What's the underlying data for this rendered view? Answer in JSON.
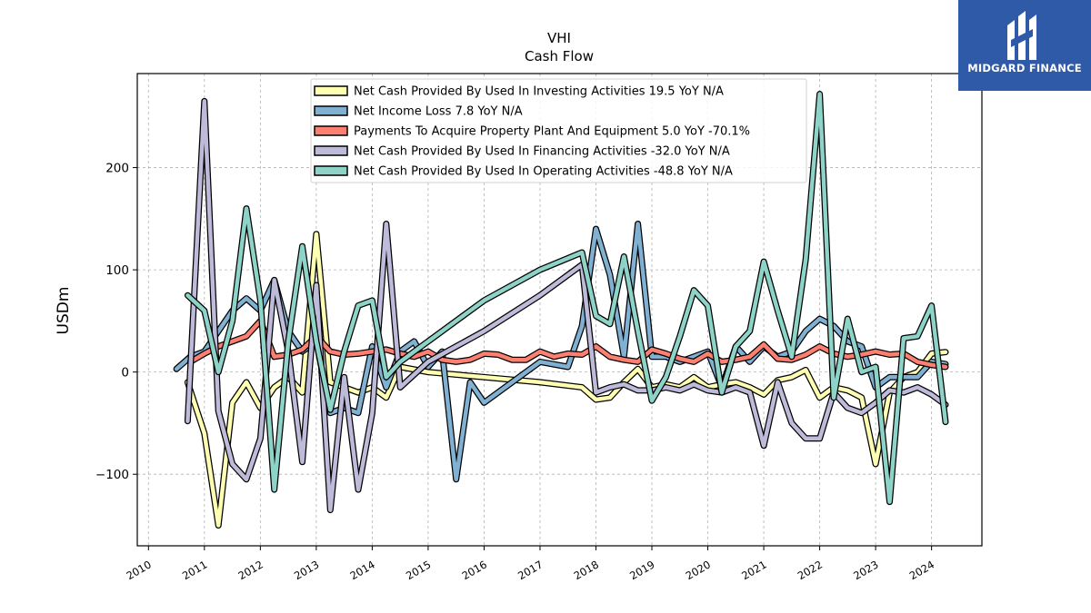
{
  "brand": {
    "name": "MIDGARD FINANCE",
    "logo_icon": "midgard-logo-icon",
    "logo_color": "#2f5aa8"
  },
  "chart_data": {
    "type": "line",
    "title": "VHI",
    "subtitle": "Cash Flow",
    "xlabel": "",
    "ylabel": "USDm",
    "xlim": [
      2009.8,
      2024.9
    ],
    "ylim": [
      -170,
      292
    ],
    "x_ticks": [
      "2010",
      "2011",
      "2012",
      "2013",
      "2014",
      "2015",
      "2016",
      "2017",
      "2018",
      "2019",
      "2020",
      "2021",
      "2022",
      "2023",
      "2024"
    ],
    "y_ticks": [
      -100,
      0,
      100,
      200
    ],
    "y_tick_labels": [
      "−100",
      "0",
      "100",
      "200"
    ],
    "grid": true,
    "legend_position": "top-center",
    "series": [
      {
        "name": "Net Cash Provided By Used In Investing Activities  19.5 YoY N/A",
        "color": "#ffffb3",
        "points": [
          [
            2010.7,
            -10
          ],
          [
            2011.0,
            -60
          ],
          [
            2011.25,
            -150
          ],
          [
            2011.5,
            -30
          ],
          [
            2011.75,
            -10
          ],
          [
            2012.0,
            -35
          ],
          [
            2012.25,
            -15
          ],
          [
            2012.5,
            -5
          ],
          [
            2012.75,
            -20
          ],
          [
            2013.0,
            135
          ],
          [
            2013.25,
            -10
          ],
          [
            2013.5,
            -15
          ],
          [
            2013.75,
            -20
          ],
          [
            2014.0,
            -15
          ],
          [
            2014.25,
            -25
          ],
          [
            2014.5,
            5
          ],
          [
            2015.0,
            0
          ],
          [
            2016.0,
            -5
          ],
          [
            2017.0,
            -10
          ],
          [
            2017.75,
            -15
          ],
          [
            2018.0,
            -27
          ],
          [
            2018.25,
            -25
          ],
          [
            2018.5,
            -10
          ],
          [
            2018.75,
            3
          ],
          [
            2019.0,
            -15
          ],
          [
            2019.25,
            -12
          ],
          [
            2019.5,
            -15
          ],
          [
            2019.75,
            -5
          ],
          [
            2020.0,
            -15
          ],
          [
            2020.25,
            -12
          ],
          [
            2020.5,
            -10
          ],
          [
            2020.75,
            -15
          ],
          [
            2021.0,
            -22
          ],
          [
            2021.25,
            -8
          ],
          [
            2021.5,
            -5
          ],
          [
            2021.75,
            2
          ],
          [
            2022.0,
            -25
          ],
          [
            2022.25,
            -15
          ],
          [
            2022.5,
            -18
          ],
          [
            2022.75,
            -25
          ],
          [
            2023.0,
            -90
          ],
          [
            2023.25,
            -20
          ],
          [
            2023.5,
            -5
          ],
          [
            2023.75,
            0
          ],
          [
            2024.0,
            18
          ],
          [
            2024.25,
            19.5
          ]
        ]
      },
      {
        "name": "Net Income Loss  7.8 YoY N/A",
        "color": "#80b1d3",
        "points": [
          [
            2010.5,
            3
          ],
          [
            2010.75,
            15
          ],
          [
            2011.0,
            20
          ],
          [
            2011.25,
            40
          ],
          [
            2011.5,
            60
          ],
          [
            2011.75,
            72
          ],
          [
            2012.0,
            60
          ],
          [
            2012.25,
            90
          ],
          [
            2012.5,
            40
          ],
          [
            2012.75,
            20
          ],
          [
            2013.0,
            30
          ],
          [
            2013.25,
            -40
          ],
          [
            2013.5,
            -35
          ],
          [
            2013.75,
            -40
          ],
          [
            2014.0,
            25
          ],
          [
            2014.25,
            -15
          ],
          [
            2014.5,
            20
          ],
          [
            2014.75,
            30
          ],
          [
            2015.0,
            5
          ],
          [
            2015.25,
            20
          ],
          [
            2015.5,
            -105
          ],
          [
            2015.75,
            -10
          ],
          [
            2016.0,
            -30
          ],
          [
            2016.5,
            -10
          ],
          [
            2017.0,
            10
          ],
          [
            2017.5,
            5
          ],
          [
            2017.75,
            45
          ],
          [
            2018.0,
            140
          ],
          [
            2018.25,
            95
          ],
          [
            2018.5,
            15
          ],
          [
            2018.75,
            145
          ],
          [
            2019.0,
            15
          ],
          [
            2019.25,
            15
          ],
          [
            2019.5,
            10
          ],
          [
            2019.75,
            15
          ],
          [
            2020.0,
            20
          ],
          [
            2020.25,
            -15
          ],
          [
            2020.5,
            25
          ],
          [
            2020.75,
            10
          ],
          [
            2021.0,
            25
          ],
          [
            2021.25,
            15
          ],
          [
            2021.5,
            20
          ],
          [
            2021.75,
            40
          ],
          [
            2022.0,
            52
          ],
          [
            2022.25,
            45
          ],
          [
            2022.5,
            30
          ],
          [
            2022.75,
            25
          ],
          [
            2023.0,
            -15
          ],
          [
            2023.25,
            -5
          ],
          [
            2023.5,
            -5
          ],
          [
            2023.75,
            -5
          ],
          [
            2024.0,
            10
          ],
          [
            2024.25,
            7.8
          ]
        ]
      },
      {
        "name": "Payments To Acquire Property Plant And Equipment  5.0 YoY -70.1%",
        "color": "#fb8072",
        "points": [
          [
            2010.75,
            10
          ],
          [
            2011.0,
            18
          ],
          [
            2011.25,
            25
          ],
          [
            2011.5,
            30
          ],
          [
            2011.75,
            35
          ],
          [
            2012.0,
            50
          ],
          [
            2012.25,
            15
          ],
          [
            2012.5,
            17
          ],
          [
            2012.75,
            22
          ],
          [
            2013.0,
            35
          ],
          [
            2013.25,
            20
          ],
          [
            2013.5,
            17
          ],
          [
            2013.75,
            18
          ],
          [
            2014.0,
            20
          ],
          [
            2014.25,
            22
          ],
          [
            2014.5,
            18
          ],
          [
            2014.75,
            15
          ],
          [
            2015.0,
            20
          ],
          [
            2015.25,
            12
          ],
          [
            2015.5,
            10
          ],
          [
            2015.75,
            12
          ],
          [
            2016.0,
            18
          ],
          [
            2016.25,
            17
          ],
          [
            2016.5,
            12
          ],
          [
            2016.75,
            12
          ],
          [
            2017.0,
            20
          ],
          [
            2017.25,
            15
          ],
          [
            2017.5,
            18
          ],
          [
            2017.75,
            17
          ],
          [
            2018.0,
            25
          ],
          [
            2018.25,
            15
          ],
          [
            2018.5,
            12
          ],
          [
            2018.75,
            10
          ],
          [
            2019.0,
            22
          ],
          [
            2019.25,
            18
          ],
          [
            2019.5,
            13
          ],
          [
            2019.75,
            10
          ],
          [
            2020.0,
            18
          ],
          [
            2020.25,
            10
          ],
          [
            2020.5,
            12
          ],
          [
            2020.75,
            15
          ],
          [
            2021.0,
            27
          ],
          [
            2021.25,
            13
          ],
          [
            2021.5,
            12
          ],
          [
            2021.75,
            17
          ],
          [
            2022.0,
            25
          ],
          [
            2022.25,
            18
          ],
          [
            2022.5,
            15
          ],
          [
            2022.75,
            17
          ],
          [
            2023.0,
            20
          ],
          [
            2023.25,
            17
          ],
          [
            2023.5,
            18
          ],
          [
            2023.75,
            10
          ],
          [
            2024.0,
            7
          ],
          [
            2024.25,
            5
          ]
        ]
      },
      {
        "name": "Net Cash Provided By Used In Financing Activities  -32.0 YoY N/A",
        "color": "#bebada",
        "points": [
          [
            2010.7,
            -48
          ],
          [
            2011.0,
            265
          ],
          [
            2011.25,
            -38
          ],
          [
            2011.5,
            -90
          ],
          [
            2011.75,
            -105
          ],
          [
            2012.0,
            -65
          ],
          [
            2012.25,
            90
          ],
          [
            2012.5,
            20
          ],
          [
            2012.75,
            -88
          ],
          [
            2013.0,
            85
          ],
          [
            2013.25,
            -135
          ],
          [
            2013.5,
            -5
          ],
          [
            2013.75,
            -115
          ],
          [
            2014.0,
            -40
          ],
          [
            2014.25,
            145
          ],
          [
            2014.5,
            -15
          ],
          [
            2015.0,
            10
          ],
          [
            2016.0,
            40
          ],
          [
            2017.0,
            75
          ],
          [
            2017.75,
            105
          ],
          [
            2018.0,
            -20
          ],
          [
            2018.25,
            -15
          ],
          [
            2018.5,
            -12
          ],
          [
            2018.75,
            -18
          ],
          [
            2019.0,
            -18
          ],
          [
            2019.25,
            -15
          ],
          [
            2019.5,
            -18
          ],
          [
            2019.75,
            -12
          ],
          [
            2020.0,
            -18
          ],
          [
            2020.25,
            -20
          ],
          [
            2020.5,
            -15
          ],
          [
            2020.75,
            -20
          ],
          [
            2021.0,
            -72
          ],
          [
            2021.25,
            -10
          ],
          [
            2021.5,
            -50
          ],
          [
            2021.75,
            -65
          ],
          [
            2022.0,
            -65
          ],
          [
            2022.25,
            -20
          ],
          [
            2022.5,
            -35
          ],
          [
            2022.75,
            -40
          ],
          [
            2023.0,
            -30
          ],
          [
            2023.25,
            -18
          ],
          [
            2023.5,
            -20
          ],
          [
            2023.75,
            -15
          ],
          [
            2024.0,
            -22
          ],
          [
            2024.25,
            -32
          ]
        ]
      },
      {
        "name": "Net Cash Provided By Used In Operating Activities  -48.8 YoY N/A",
        "color": "#8dd3c7",
        "points": [
          [
            2010.7,
            75
          ],
          [
            2011.0,
            60
          ],
          [
            2011.25,
            0
          ],
          [
            2011.5,
            50
          ],
          [
            2011.75,
            160
          ],
          [
            2012.0,
            70
          ],
          [
            2012.25,
            -115
          ],
          [
            2012.5,
            30
          ],
          [
            2012.75,
            123
          ],
          [
            2013.0,
            30
          ],
          [
            2013.25,
            -37
          ],
          [
            2013.5,
            20
          ],
          [
            2013.75,
            65
          ],
          [
            2014.0,
            70
          ],
          [
            2014.25,
            -5
          ],
          [
            2014.5,
            10
          ],
          [
            2015.0,
            30
          ],
          [
            2016.0,
            70
          ],
          [
            2017.0,
            100
          ],
          [
            2017.75,
            117
          ],
          [
            2018.0,
            55
          ],
          [
            2018.25,
            47
          ],
          [
            2018.5,
            113
          ],
          [
            2018.75,
            40
          ],
          [
            2019.0,
            -28
          ],
          [
            2019.25,
            -5
          ],
          [
            2019.5,
            35
          ],
          [
            2019.75,
            80
          ],
          [
            2020.0,
            65
          ],
          [
            2020.25,
            -20
          ],
          [
            2020.5,
            25
          ],
          [
            2020.75,
            40
          ],
          [
            2021.0,
            108
          ],
          [
            2021.25,
            60
          ],
          [
            2021.5,
            15
          ],
          [
            2021.75,
            110
          ],
          [
            2022.0,
            272
          ],
          [
            2022.25,
            -25
          ],
          [
            2022.5,
            52
          ],
          [
            2022.75,
            0
          ],
          [
            2023.0,
            5
          ],
          [
            2023.25,
            -127
          ],
          [
            2023.5,
            33
          ],
          [
            2023.75,
            35
          ],
          [
            2024.0,
            65
          ],
          [
            2024.25,
            -48.8
          ]
        ]
      }
    ]
  }
}
